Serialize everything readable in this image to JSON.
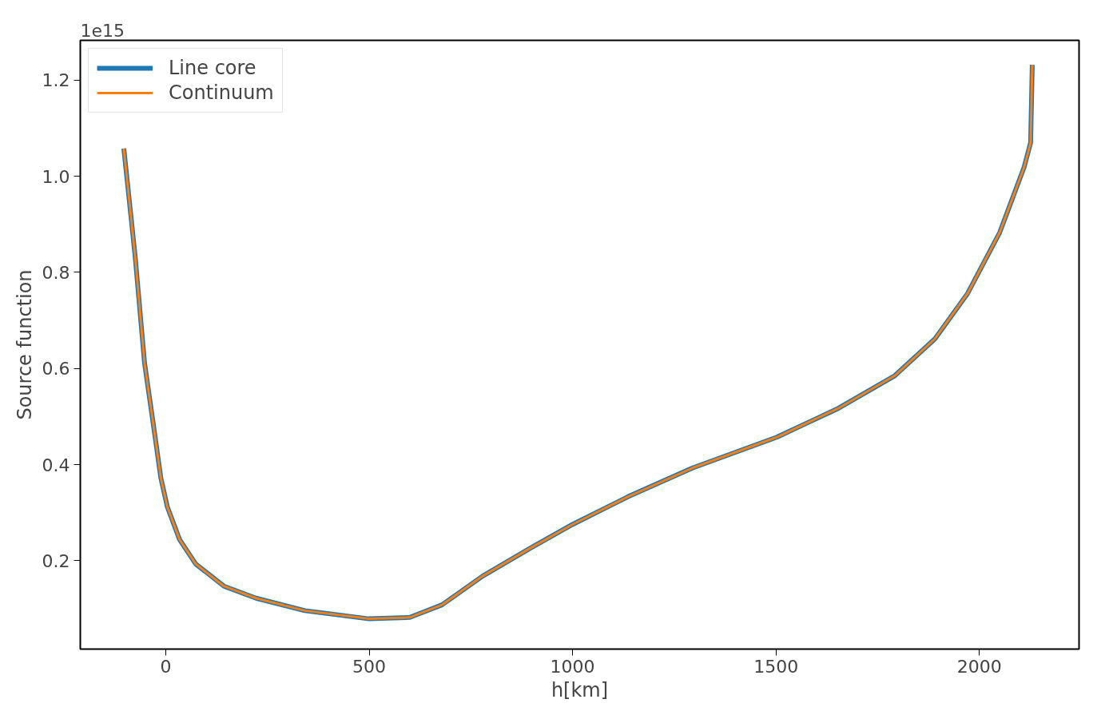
{
  "chart_data": {
    "type": "line",
    "xlabel": "h[km]",
    "ylabel": "Source function",
    "annotations": [
      "1e15"
    ],
    "xlim": [
      -210,
      2245
    ],
    "ylim": [
      0.016,
      1.283
    ],
    "xticks": [
      0,
      500,
      1000,
      1500,
      2000
    ],
    "yticks": [
      {
        "value": 0.2,
        "label": "0.2"
      },
      {
        "value": 0.4,
        "label": "0.4"
      },
      {
        "value": 0.6,
        "label": "0.6"
      },
      {
        "value": 0.8,
        "label": "0.8"
      },
      {
        "value": 1.0,
        "label": "1.0"
      },
      {
        "value": 1.2,
        "label": "1.2"
      }
    ],
    "x": [
      -103,
      -75,
      -52,
      -26,
      -12,
      4,
      34,
      74,
      143,
      222,
      342,
      500,
      600,
      679,
      779,
      898,
      999,
      1136,
      1295,
      1502,
      1653,
      1792,
      1891,
      1971,
      2050,
      2110,
      2126,
      2130
    ],
    "series": [
      {
        "name": "Line core",
        "color": "#1f77b4",
        "values": [
          1.058,
          0.832,
          0.611,
          0.457,
          0.372,
          0.312,
          0.244,
          0.193,
          0.147,
          0.122,
          0.096,
          0.079,
          0.082,
          0.108,
          0.168,
          0.227,
          0.275,
          0.333,
          0.393,
          0.457,
          0.517,
          0.585,
          0.662,
          0.756,
          0.883,
          1.019,
          1.07,
          1.232
        ]
      },
      {
        "name": "Continuum",
        "color": "#ff7f0e",
        "values": [
          1.058,
          0.832,
          0.611,
          0.457,
          0.372,
          0.312,
          0.244,
          0.193,
          0.147,
          0.122,
          0.096,
          0.079,
          0.082,
          0.108,
          0.168,
          0.227,
          0.275,
          0.333,
          0.393,
          0.457,
          0.517,
          0.585,
          0.662,
          0.756,
          0.883,
          1.019,
          1.07,
          1.232
        ]
      }
    ],
    "legend": "top left",
    "grid": false
  }
}
